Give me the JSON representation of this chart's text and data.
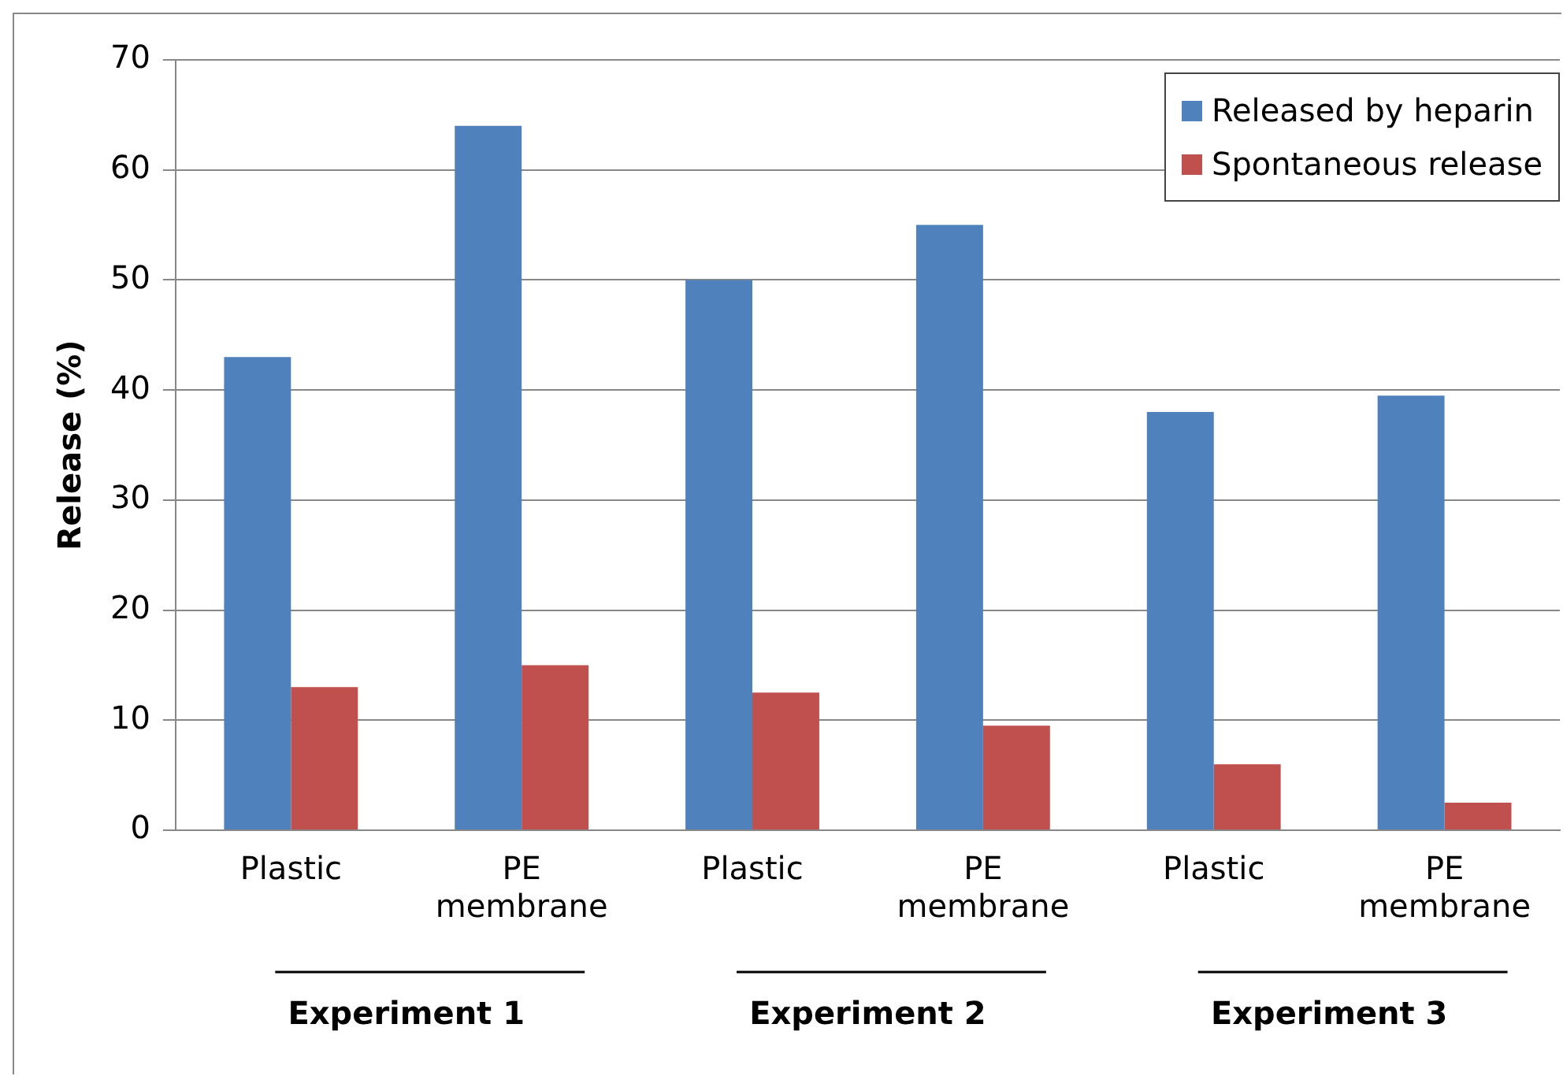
{
  "chart_data": {
    "type": "bar",
    "ylabel": "Release (%)",
    "categories": [
      "Plastic",
      "PE membrane",
      "Plastic",
      "PE membrane",
      "Plastic",
      "PE membrane"
    ],
    "series": [
      {
        "name": "Released by heparin",
        "color": "#4f81bd",
        "values": [
          43,
          64,
          50,
          55,
          38,
          39.5
        ]
      },
      {
        "name": "Spontaneous release",
        "color": "#c0504d",
        "values": [
          13,
          15,
          12.5,
          9.5,
          6,
          2.5
        ]
      }
    ],
    "ylim": [
      0,
      70
    ],
    "yticks": [
      0,
      10,
      20,
      30,
      40,
      50,
      60,
      70
    ],
    "grid": "y",
    "legend": "top right",
    "annotations": [
      "Experiment 1",
      "Experiment 2",
      "Experiment 3"
    ]
  }
}
